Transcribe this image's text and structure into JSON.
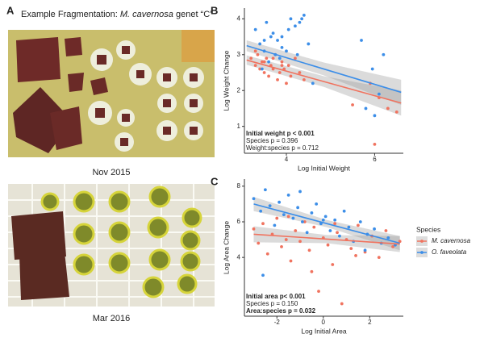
{
  "panel_a": {
    "label": "A",
    "title_prefix": "Example Fragmentation: ",
    "title_species": "M. cavernosa",
    "title_suffix": " genet “C”",
    "caption_top": "Nov 2015",
    "caption_bottom": "Mar 2016"
  },
  "chart_data": [
    {
      "type": "scatter",
      "label": "B",
      "xlabel": "Log Initial Weight",
      "ylabel": "Log Weight Change",
      "xlim": [
        3.05,
        6.65
      ],
      "ylim": [
        0.25,
        4.3
      ],
      "xticks": [
        4,
        6
      ],
      "yticks": [
        1,
        2,
        3,
        4
      ],
      "grid": false,
      "legend": false,
      "annotations": [
        {
          "text": "Initial weight p < 0.001",
          "bold": true
        },
        {
          "text": "Species p = 0.396",
          "bold": false
        },
        {
          "text": "Weight:species p = 0.712",
          "bold": false
        }
      ],
      "series": [
        {
          "name": "M. cavernosa",
          "color": "#F0735F",
          "x": [
            3.2,
            3.3,
            3.35,
            3.4,
            3.45,
            3.5,
            3.55,
            3.6,
            3.65,
            3.7,
            3.75,
            3.8,
            3.85,
            3.9,
            3.95,
            4.0,
            4.05,
            4.1,
            4.2,
            4.3,
            4.4,
            3.3,
            3.5,
            3.7,
            3.9,
            5.5,
            5.9,
            6.1,
            6.3,
            6.5,
            6.0
          ],
          "values": [
            2.9,
            2.7,
            3.0,
            2.6,
            2.8,
            2.5,
            2.9,
            2.4,
            2.7,
            2.6,
            3.0,
            2.3,
            2.5,
            2.8,
            2.6,
            2.2,
            2.7,
            2.4,
            2.9,
            2.5,
            2.3,
            3.1,
            2.8,
            2.9,
            2.7,
            1.6,
            2.2,
            1.8,
            1.5,
            1.4,
            0.5
          ],
          "fit": {
            "x": [
              3.1,
              4.85,
              6.6
            ],
            "y": [
              2.85,
              2.25,
              1.65
            ],
            "lower": [
              2.72,
              2.1,
              1.3
            ],
            "upper": [
              2.98,
              2.4,
              2.0
            ]
          }
        },
        {
          "name": "O. faveolata",
          "color": "#3C8EE8",
          "x": [
            3.3,
            3.4,
            3.5,
            3.55,
            3.6,
            3.7,
            3.75,
            3.8,
            3.85,
            3.9,
            4.0,
            4.1,
            4.2,
            4.3,
            4.4,
            4.5,
            3.45,
            3.65,
            4.05,
            4.25,
            4.35,
            4.6,
            5.7,
            5.8,
            5.95,
            6.0,
            6.1,
            6.2,
            3.5,
            3.9
          ],
          "values": [
            3.7,
            3.3,
            3.1,
            3.9,
            2.8,
            3.6,
            3.0,
            3.4,
            2.9,
            3.2,
            3.1,
            4.0,
            3.8,
            3.9,
            4.1,
            3.3,
            2.6,
            3.5,
            3.7,
            3.0,
            4.0,
            2.2,
            3.4,
            1.5,
            2.6,
            1.3,
            1.9,
            3.0,
            3.4,
            3.5
          ],
          "fit": {
            "x": [
              3.1,
              4.85,
              6.6
            ],
            "y": [
              3.25,
              2.6,
              1.95
            ],
            "lower": [
              3.1,
              2.42,
              1.6
            ],
            "upper": [
              3.4,
              2.78,
              2.3
            ]
          }
        }
      ]
    },
    {
      "type": "scatter",
      "label": "C",
      "xlabel": "Log Initial Area",
      "ylabel": "Log Area Change",
      "xlim": [
        -3.4,
        3.45
      ],
      "ylim": [
        0.7,
        8.4
      ],
      "xticks": [
        -2,
        0,
        2
      ],
      "yticks": [
        4,
        6,
        8
      ],
      "grid": false,
      "legend": "right",
      "legend_title": "Species",
      "annotations": [
        {
          "text": "Initial area p< 0.001",
          "bold": true
        },
        {
          "text": "Species p = 0.150",
          "bold": false
        },
        {
          "text": "Area:species p = 0.032",
          "bold": true
        }
      ],
      "series": [
        {
          "name": "M. cavernosa",
          "color": "#F0735F",
          "x": [
            -3.0,
            -2.8,
            -2.6,
            -2.4,
            -2.2,
            -2.0,
            -1.8,
            -1.6,
            -1.4,
            -1.2,
            -1.0,
            -0.8,
            -0.6,
            -0.4,
            -0.2,
            0.0,
            0.2,
            0.4,
            0.6,
            0.8,
            1.0,
            1.2,
            1.5,
            1.8,
            2.1,
            2.4,
            2.7,
            3.0,
            3.3,
            -1.5,
            -0.5,
            0.5,
            1.4
          ],
          "values": [
            5.6,
            4.8,
            5.9,
            4.2,
            5.3,
            6.2,
            4.6,
            5.0,
            3.8,
            5.5,
            4.9,
            6.0,
            4.4,
            5.7,
            2.1,
            5.1,
            4.7,
            3.6,
            5.4,
            1.4,
            5.0,
            4.5,
            5.8,
            4.3,
            5.2,
            4.0,
            5.5,
            4.6,
            4.9,
            6.3,
            3.2,
            5.9,
            4.1
          ],
          "fit": {
            "x": [
              -3.0,
              0.15,
              3.3
            ],
            "y": [
              5.3,
              5.03,
              4.75
            ],
            "lower": [
              4.85,
              4.8,
              4.3
            ],
            "upper": [
              5.75,
              5.26,
              5.2
            ]
          }
        },
        {
          "name": "O. faveolata",
          "color": "#3C8EE8",
          "x": [
            -3.0,
            -2.7,
            -2.5,
            -2.3,
            -2.1,
            -1.9,
            -1.7,
            -1.5,
            -1.3,
            -1.1,
            -0.9,
            -0.7,
            -0.5,
            -0.3,
            -0.1,
            0.1,
            0.3,
            0.5,
            0.7,
            0.9,
            1.1,
            1.3,
            1.6,
            1.9,
            2.2,
            2.5,
            2.8,
            3.1,
            -2.6,
            -1.0,
            0.0,
            1.8
          ],
          "values": [
            7.3,
            6.6,
            7.8,
            6.9,
            5.8,
            7.1,
            6.4,
            7.5,
            6.2,
            6.8,
            6.0,
            5.4,
            6.5,
            7.0,
            5.9,
            6.3,
            5.5,
            6.1,
            5.2,
            6.6,
            5.7,
            4.9,
            6.0,
            5.3,
            5.6,
            4.8,
            5.1,
            4.7,
            3.0,
            7.7,
            6.1,
            4.4
          ],
          "fit": {
            "x": [
              -3.0,
              0.15,
              3.3
            ],
            "y": [
              7.0,
              5.9,
              4.8
            ],
            "lower": [
              6.6,
              5.7,
              4.4
            ],
            "upper": [
              7.4,
              6.1,
              5.2
            ]
          }
        }
      ]
    }
  ]
}
